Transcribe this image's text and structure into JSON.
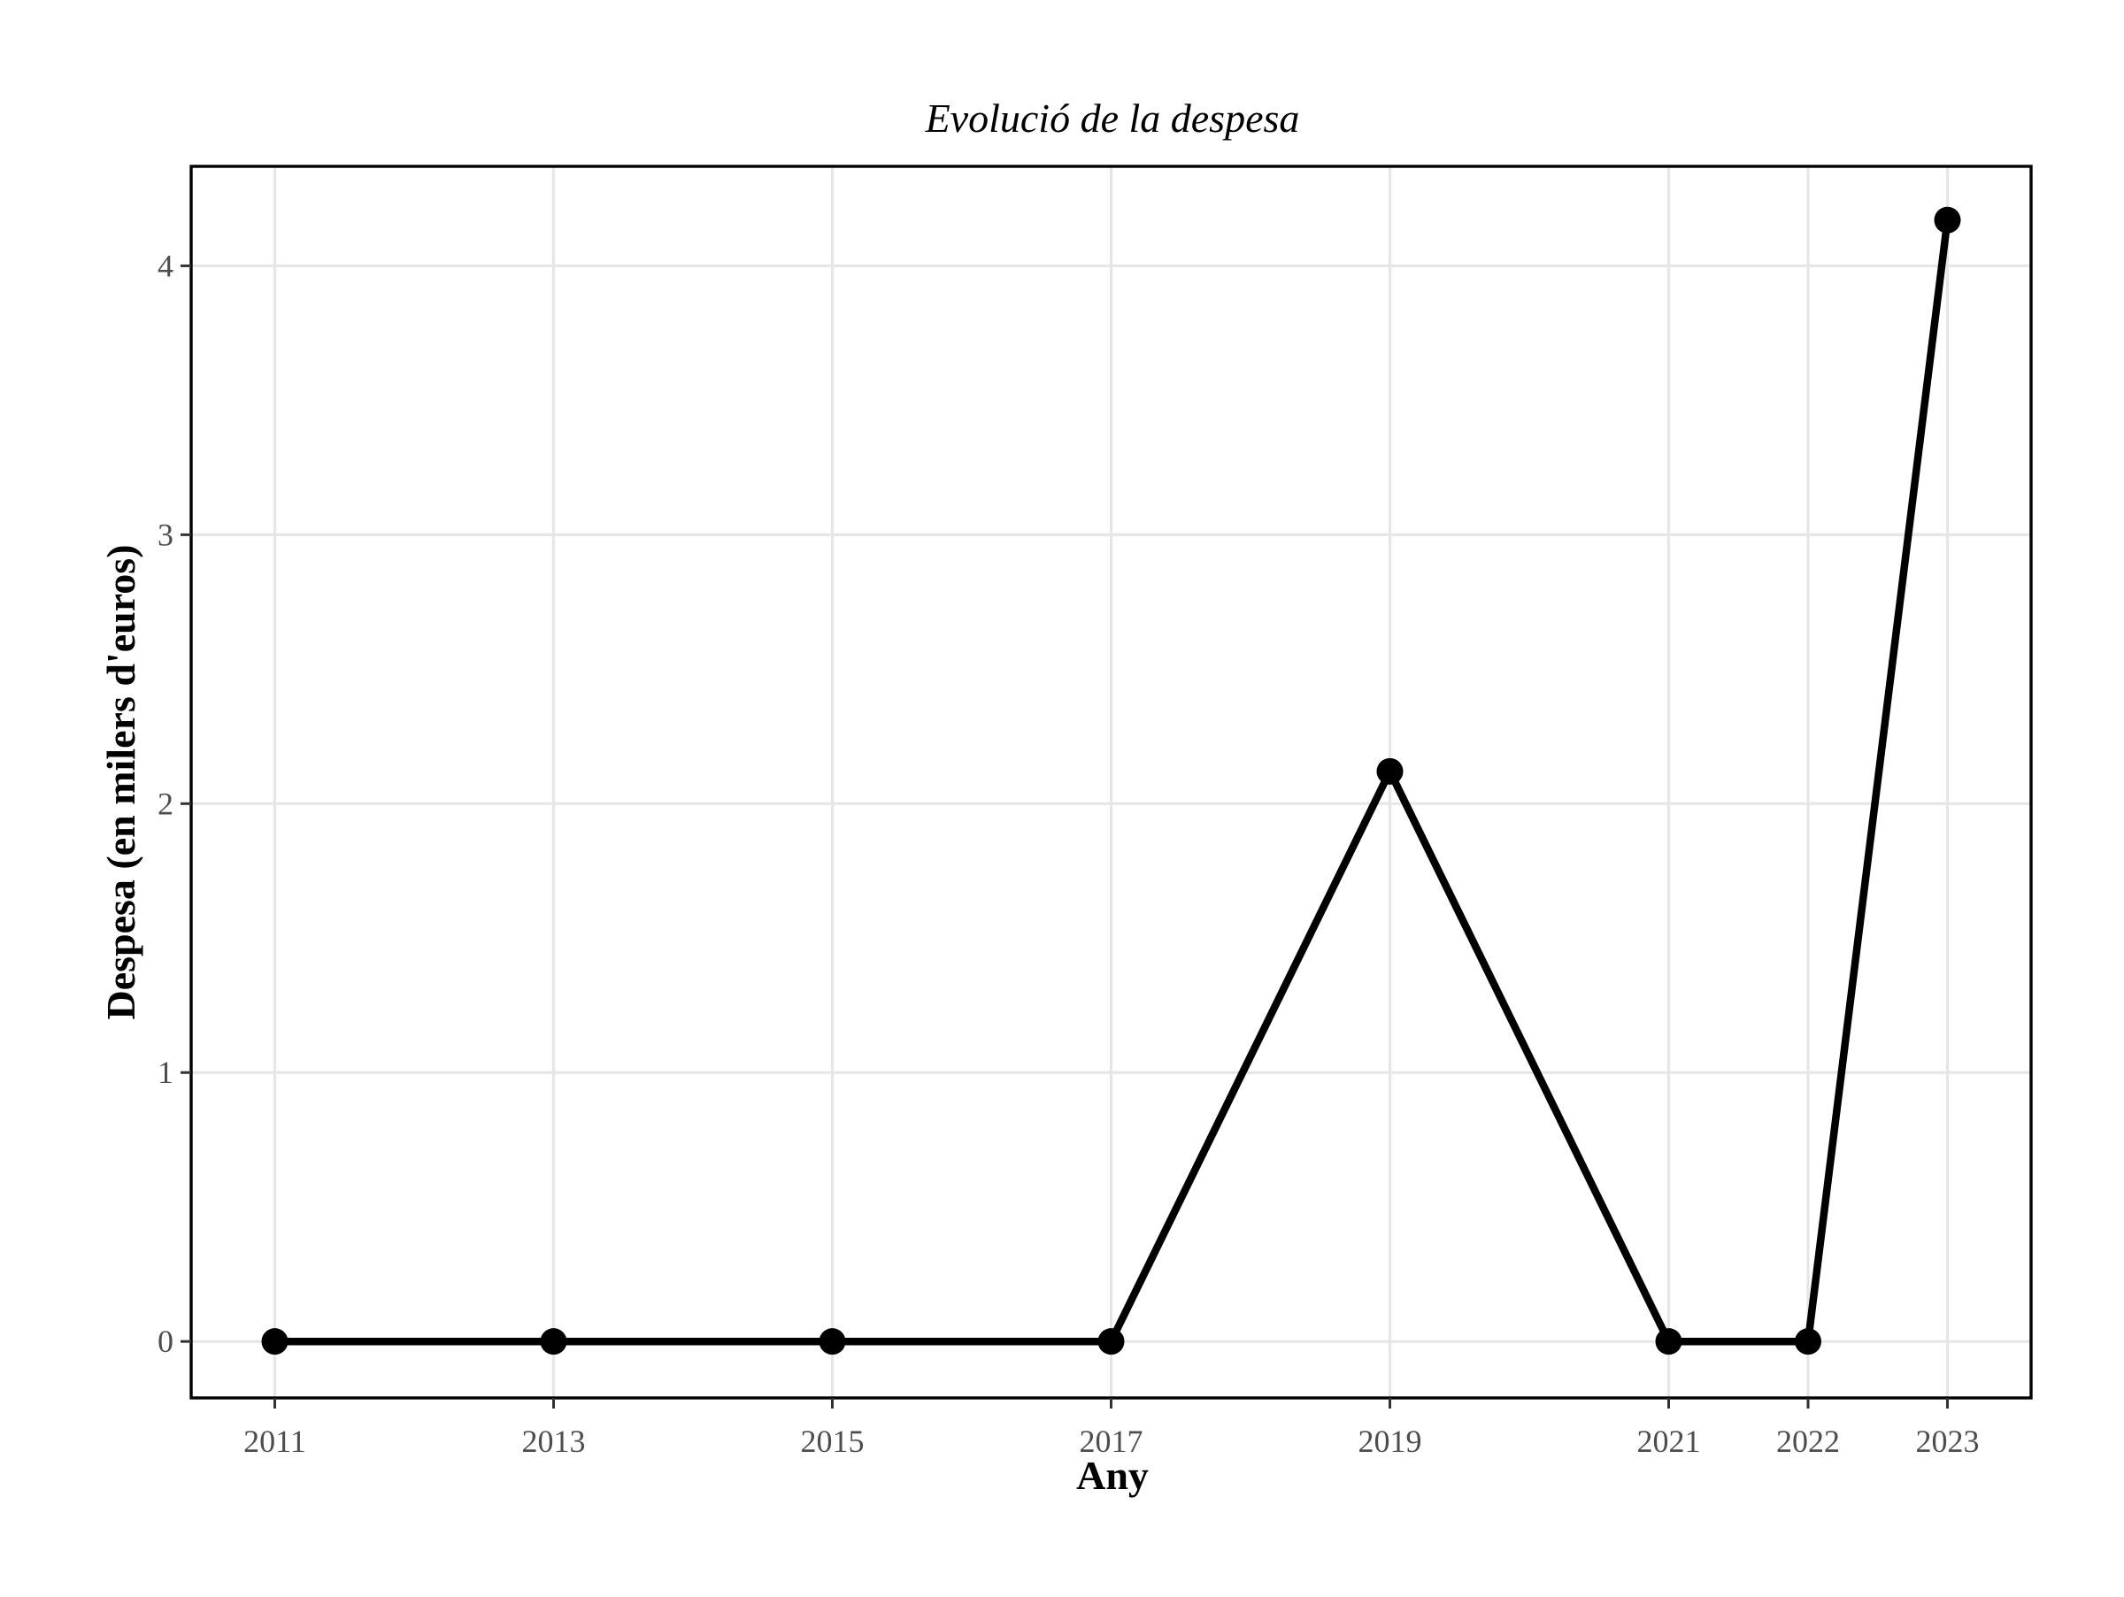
{
  "chart_data": {
    "type": "line",
    "title": "Evolució de la despesa",
    "xlabel": "Any",
    "ylabel": "Despesa (en milers d'euros)",
    "x": [
      2011,
      2013,
      2015,
      2017,
      2019,
      2021,
      2022,
      2023
    ],
    "x_tick_labels": [
      "2011",
      "2013",
      "2015",
      "2017",
      "2019",
      "2021",
      "2022",
      "2023"
    ],
    "y_ticks": [
      0,
      1,
      2,
      3,
      4
    ],
    "y_tick_labels": [
      "0",
      "1",
      "2",
      "3",
      "4"
    ],
    "series": [
      {
        "values": [
          0,
          0,
          0,
          0,
          2.12,
          0,
          0,
          4.17
        ],
        "color": "#000000"
      }
    ],
    "xlim": [
      2010.4,
      2023.6
    ],
    "ylim": [
      -0.21,
      4.37
    ],
    "grid": true,
    "legend": "none"
  }
}
